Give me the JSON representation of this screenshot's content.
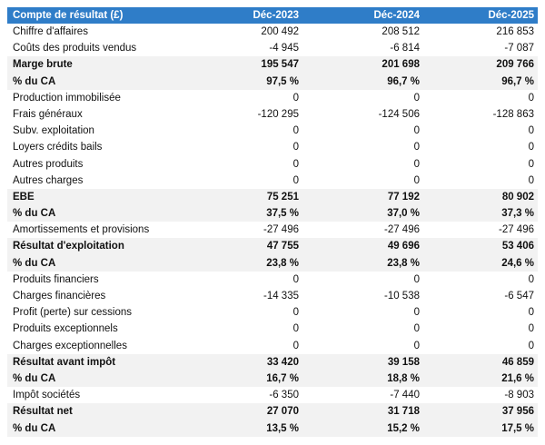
{
  "table": {
    "header": [
      "Compte de résultat (£)",
      "Déc-2023",
      "Déc-2024",
      "Déc-2025"
    ],
    "rows": [
      {
        "cells": [
          "Chiffre d'affaires",
          "200 492",
          "208 512",
          "216 853"
        ],
        "bold": false
      },
      {
        "cells": [
          "Coûts des produits vendus",
          "-4 945",
          "-6 814",
          "-7 087"
        ],
        "bold": false
      },
      {
        "cells": [
          "Marge brute",
          "195 547",
          "201 698",
          "209 766"
        ],
        "bold": true
      },
      {
        "cells": [
          "% du CA",
          "97,5 %",
          "96,7 %",
          "96,7 %"
        ],
        "bold": true
      },
      {
        "cells": [
          "Production immobilisée",
          "0",
          "0",
          "0"
        ],
        "bold": false
      },
      {
        "cells": [
          "Frais généraux",
          "-120 295",
          "-124 506",
          "-128 863"
        ],
        "bold": false
      },
      {
        "cells": [
          "Subv. exploitation",
          "0",
          "0",
          "0"
        ],
        "bold": false
      },
      {
        "cells": [
          "Loyers crédits bails",
          "0",
          "0",
          "0"
        ],
        "bold": false
      },
      {
        "cells": [
          "Autres produits",
          "0",
          "0",
          "0"
        ],
        "bold": false
      },
      {
        "cells": [
          "Autres charges",
          "0",
          "0",
          "0"
        ],
        "bold": false
      },
      {
        "cells": [
          "EBE",
          "75 251",
          "77 192",
          "80 902"
        ],
        "bold": true
      },
      {
        "cells": [
          "% du CA",
          "37,5 %",
          "37,0 %",
          "37,3 %"
        ],
        "bold": true
      },
      {
        "cells": [
          "Amortissements et provisions",
          "-27 496",
          "-27 496",
          "-27 496"
        ],
        "bold": false
      },
      {
        "cells": [
          "Résultat d'exploitation",
          "47 755",
          "49 696",
          "53 406"
        ],
        "bold": true
      },
      {
        "cells": [
          "% du CA",
          "23,8 %",
          "23,8 %",
          "24,6 %"
        ],
        "bold": true
      },
      {
        "cells": [
          "Produits financiers",
          "0",
          "0",
          "0"
        ],
        "bold": false
      },
      {
        "cells": [
          "Charges financières",
          "-14 335",
          "-10 538",
          "-6 547"
        ],
        "bold": false
      },
      {
        "cells": [
          "Profit (perte) sur cessions",
          "0",
          "0",
          "0"
        ],
        "bold": false
      },
      {
        "cells": [
          "Produits exceptionnels",
          "0",
          "0",
          "0"
        ],
        "bold": false
      },
      {
        "cells": [
          "Charges exceptionnelles",
          "0",
          "0",
          "0"
        ],
        "bold": false
      },
      {
        "cells": [
          "Résultat avant impôt",
          "33 420",
          "39 158",
          "46 859"
        ],
        "bold": true
      },
      {
        "cells": [
          "% du CA",
          "16,7 %",
          "18,8 %",
          "21,6 %"
        ],
        "bold": true
      },
      {
        "cells": [
          "Impôt sociétés",
          "-6 350",
          "-7 440",
          "-8 903"
        ],
        "bold": false
      },
      {
        "cells": [
          "Résultat net",
          "27 070",
          "31 718",
          "37 956"
        ],
        "bold": true
      },
      {
        "cells": [
          "% du CA",
          "13,5 %",
          "15,2 %",
          "17,5 %"
        ],
        "bold": true
      }
    ]
  }
}
